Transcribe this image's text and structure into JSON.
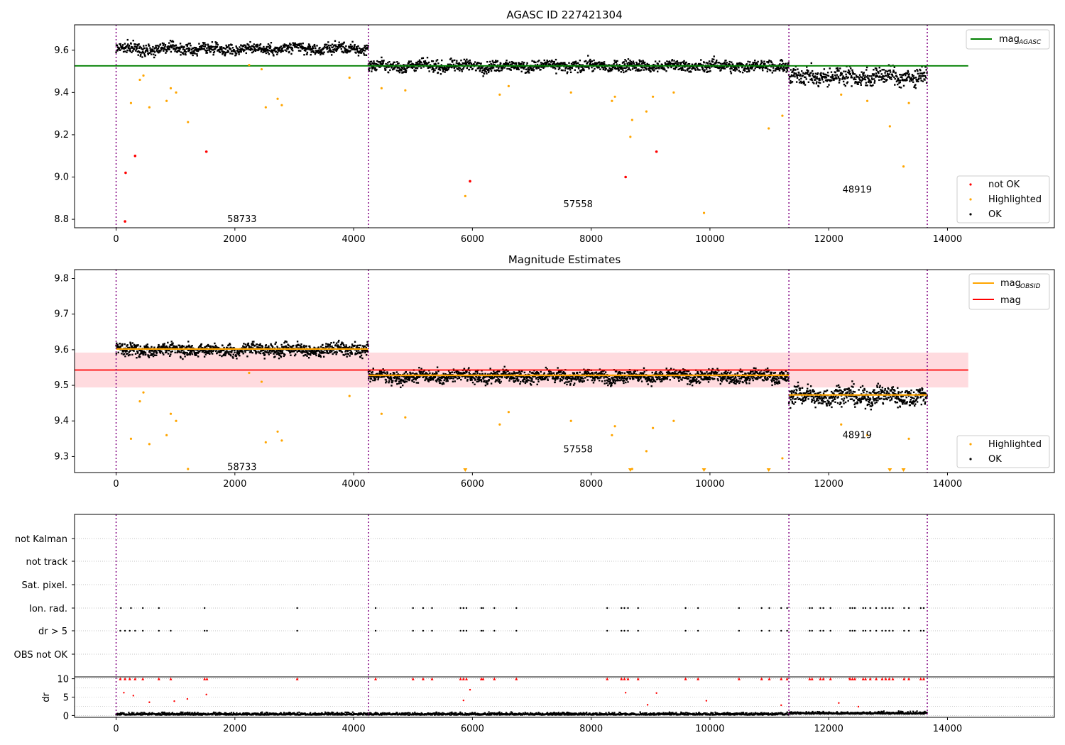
{
  "colors": {
    "ok": "#000000",
    "highlighted": "#ffa500",
    "not_ok": "#ff0000",
    "agasc_line": "#008000",
    "obsid_line": "#ffa500",
    "mag_line": "#ff0000",
    "mag_band": "#ffb0b8",
    "obs_boundary": "#800080",
    "grid": "#b0b0b0"
  },
  "chart_data": [
    {
      "type": "scatter",
      "title": "AGASC ID 227421304",
      "xlim": [
        -700,
        15800
      ],
      "ylim": [
        8.76,
        9.72
      ],
      "x_ticks": [
        "0",
        "2000",
        "4000",
        "6000",
        "8000",
        "10000",
        "12000",
        "14000"
      ],
      "x_tick_values": [
        0,
        2000,
        4000,
        6000,
        8000,
        10000,
        12000,
        14000
      ],
      "y_ticks": [
        "8.8",
        "9.0",
        "9.2",
        "9.4",
        "9.6"
      ],
      "y_tick_values": [
        8.8,
        9.0,
        9.2,
        9.4,
        9.6
      ],
      "obs_boundaries": [
        0,
        4250,
        11330,
        13660
      ],
      "obs_labels": [
        {
          "text": "58733",
          "x": 2120,
          "y": 8.8
        },
        {
          "text": "57558",
          "x": 7780,
          "y": 8.87
        },
        {
          "text": "48919",
          "x": 12480,
          "y": 8.94
        }
      ],
      "segments": [
        {
          "x0": 0,
          "x1": 4250,
          "mean": 9.607,
          "spread": 0.045
        },
        {
          "x0": 4250,
          "x1": 11330,
          "mean": 9.525,
          "spread": 0.045
        },
        {
          "x0": 11330,
          "x1": 13660,
          "mean": 9.475,
          "spread": 0.07
        }
      ],
      "hlines": [
        {
          "name": "mag$_{AGASC}$",
          "y": 9.526,
          "x0": -700,
          "x1": 14350
        }
      ],
      "legend_lines": [
        {
          "label": "mag",
          "sub": "AGASC"
        }
      ],
      "legend_points": [
        "not OK",
        "Highlighted",
        "OK"
      ],
      "not_ok_points": [
        [
          160,
          9.02
        ],
        [
          150,
          8.79
        ],
        [
          320,
          9.1
        ],
        [
          1520,
          9.12
        ],
        [
          5960,
          8.98
        ],
        [
          8580,
          9.0
        ],
        [
          9100,
          9.12
        ]
      ],
      "highlighted_points": [
        [
          250,
          9.35
        ],
        [
          400,
          9.46
        ],
        [
          460,
          9.48
        ],
        [
          560,
          9.33
        ],
        [
          850,
          9.36
        ],
        [
          920,
          9.42
        ],
        [
          1010,
          9.4
        ],
        [
          1210,
          9.26
        ],
        [
          2240,
          9.53
        ],
        [
          2450,
          9.51
        ],
        [
          2520,
          9.33
        ],
        [
          2720,
          9.37
        ],
        [
          2790,
          9.34
        ],
        [
          3930,
          9.47
        ],
        [
          4470,
          9.42
        ],
        [
          4870,
          9.41
        ],
        [
          5880,
          8.91
        ],
        [
          6460,
          9.39
        ],
        [
          6610,
          9.43
        ],
        [
          7660,
          9.4
        ],
        [
          8350,
          9.36
        ],
        [
          8400,
          9.38
        ],
        [
          8660,
          9.19
        ],
        [
          8690,
          9.27
        ],
        [
          8930,
          9.31
        ],
        [
          9040,
          9.38
        ],
        [
          9390,
          9.4
        ],
        [
          9900,
          8.83
        ],
        [
          10990,
          9.23
        ],
        [
          11220,
          9.29
        ],
        [
          12210,
          9.39
        ],
        [
          12650,
          9.36
        ],
        [
          13030,
          9.24
        ],
        [
          13260,
          9.05
        ],
        [
          13350,
          9.35
        ]
      ]
    },
    {
      "type": "scatter",
      "title": "Magnitude Estimates",
      "xlim": [
        -700,
        15800
      ],
      "ylim": [
        9.255,
        9.825
      ],
      "x_ticks": [
        "0",
        "2000",
        "4000",
        "6000",
        "8000",
        "10000",
        "12000",
        "14000"
      ],
      "x_tick_values": [
        0,
        2000,
        4000,
        6000,
        8000,
        10000,
        12000,
        14000
      ],
      "y_ticks": [
        "9.3",
        "9.4",
        "9.5",
        "9.6",
        "9.7",
        "9.8"
      ],
      "y_tick_values": [
        9.3,
        9.4,
        9.5,
        9.6,
        9.7,
        9.8
      ],
      "obs_boundaries": [
        0,
        4250,
        11330,
        13660
      ],
      "obs_labels": [
        {
          "text": "58733",
          "x": 2120,
          "y": 9.27
        },
        {
          "text": "57558",
          "x": 7780,
          "y": 9.32
        },
        {
          "text": "48919",
          "x": 12480,
          "y": 9.36
        }
      ],
      "segments": [
        {
          "x0": 0,
          "x1": 4250,
          "mean": 9.6,
          "spread": 0.03
        },
        {
          "x0": 4250,
          "x1": 11330,
          "mean": 9.525,
          "spread": 0.03
        },
        {
          "x0": 11330,
          "x1": 13660,
          "mean": 9.47,
          "spread": 0.045
        }
      ],
      "obsid_lines": [
        {
          "x0": 0,
          "x1": 4250,
          "y": 9.602
        },
        {
          "x0": 4250,
          "x1": 11330,
          "y": 9.528
        },
        {
          "x0": 11330,
          "x1": 13660,
          "y": 9.473
        }
      ],
      "mag_line": {
        "y": 9.543,
        "x0": -700,
        "x1": 14350
      },
      "mag_band": [
        9.494,
        9.592
      ],
      "legend_lines": [
        {
          "label": "mag",
          "sub": "OBSID"
        },
        {
          "label": "mag",
          "sub": ""
        }
      ],
      "legend_points": [
        "Highlighted",
        "OK"
      ],
      "highlighted_points": [
        [
          250,
          9.35
        ],
        [
          400,
          9.455
        ],
        [
          460,
          9.48
        ],
        [
          560,
          9.335
        ],
        [
          850,
          9.36
        ],
        [
          920,
          9.42
        ],
        [
          1010,
          9.4
        ],
        [
          1210,
          9.265
        ],
        [
          2240,
          9.535
        ],
        [
          2450,
          9.51
        ],
        [
          2520,
          9.34
        ],
        [
          2720,
          9.37
        ],
        [
          2790,
          9.345
        ],
        [
          3930,
          9.47
        ],
        [
          4470,
          9.42
        ],
        [
          4870,
          9.41
        ],
        [
          5880,
          9.26
        ],
        [
          6460,
          9.39
        ],
        [
          6610,
          9.425
        ],
        [
          7660,
          9.4
        ],
        [
          8350,
          9.36
        ],
        [
          8400,
          9.385
        ],
        [
          8660,
          9.26
        ],
        [
          8690,
          9.265
        ],
        [
          8930,
          9.315
        ],
        [
          9040,
          9.38
        ],
        [
          9390,
          9.4
        ],
        [
          9900,
          9.26
        ],
        [
          10990,
          9.26
        ],
        [
          11220,
          9.295
        ],
        [
          12210,
          9.39
        ],
        [
          12650,
          9.36
        ],
        [
          13030,
          9.26
        ],
        [
          13260,
          9.26
        ],
        [
          13350,
          9.35
        ]
      ]
    },
    {
      "type": "scatter",
      "title": "",
      "xlim": [
        -700,
        15800
      ],
      "obs_boundaries": [
        0,
        4250,
        11330,
        13660
      ],
      "flag_labels": [
        "not Kalman",
        "not track",
        "Sat. pixel.",
        "Ion. rad.",
        "dr > 5",
        "OBS not OK"
      ],
      "ion_rad_x": [
        80,
        250,
        450,
        720,
        1490,
        3050,
        4370,
        5000,
        5170,
        5320,
        5800,
        5850,
        5900,
        6150,
        6180,
        6370,
        6740,
        8270,
        8510,
        8560,
        8620,
        8790,
        9590,
        9800,
        10490,
        10870,
        11000,
        11200,
        11300,
        11680,
        11720,
        11860,
        11910,
        12030,
        12360,
        12400,
        12440,
        12580,
        12620,
        12700,
        12800,
        12900,
        12960,
        13020,
        13080,
        13270,
        13350,
        13550,
        13600
      ],
      "dr5_x": [
        70,
        150,
        230,
        320,
        450,
        720,
        920,
        1490,
        1530,
        3050,
        4370,
        5000,
        5170,
        5320,
        5800,
        5850,
        5900,
        6150,
        6180,
        6370,
        6740,
        8270,
        8510,
        8560,
        8620,
        8790,
        9590,
        9800,
        10490,
        10870,
        11000,
        11200,
        11300,
        11680,
        11720,
        11860,
        11910,
        12030,
        12360,
        12400,
        12440,
        12580,
        12620,
        12700,
        12800,
        12900,
        12960,
        13020,
        13080,
        13270,
        13350,
        13550,
        13600
      ],
      "dr_ylabel": "dr",
      "dr_ylim": [
        -0.5,
        10.5
      ],
      "dr_ticks": [
        "0",
        "5",
        "10"
      ],
      "dr_tick_values": [
        0,
        5,
        10
      ],
      "dr_high_points": [
        [
          130,
          6.2
        ],
        [
          290,
          5.4
        ],
        [
          560,
          3.6
        ],
        [
          980,
          3.9
        ],
        [
          1200,
          4.5
        ],
        [
          1520,
          5.7
        ],
        [
          5850,
          4.1
        ],
        [
          5960,
          7.0
        ],
        [
          8580,
          6.2
        ],
        [
          8950,
          2.9
        ],
        [
          9100,
          6.1
        ],
        [
          9940,
          4.0
        ],
        [
          11200,
          2.8
        ],
        [
          12170,
          3.4
        ],
        [
          12350,
          10.0
        ],
        [
          12500,
          2.4
        ]
      ],
      "x_ticks": [
        "0",
        "2000",
        "4000",
        "6000",
        "8000",
        "10000",
        "12000",
        "14000"
      ],
      "x_tick_values": [
        0,
        2000,
        4000,
        6000,
        8000,
        10000,
        12000,
        14000
      ]
    }
  ]
}
